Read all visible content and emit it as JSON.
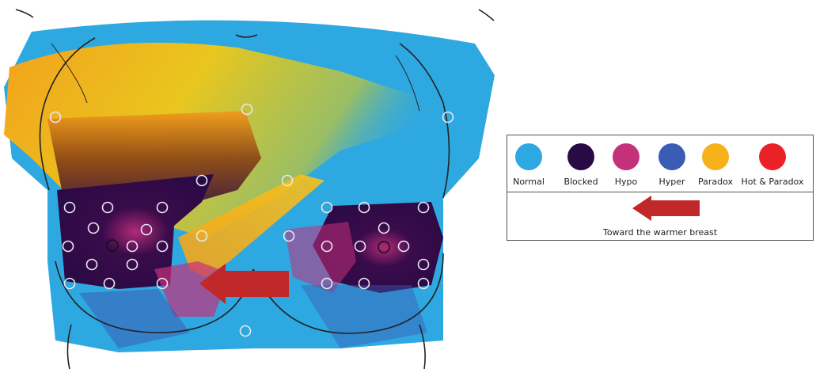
{
  "legend": {
    "items": [
      {
        "label": "Normal",
        "color": "#2ea8e0"
      },
      {
        "label": "Blocked",
        "color": "#2a0a45"
      },
      {
        "label": "Hypo",
        "color": "#c4307a"
      },
      {
        "label": "Hyper",
        "color": "#3a5cb4"
      },
      {
        "label": "Paradox",
        "color": "#f7b21a"
      },
      {
        "label": "Hot & Paradox",
        "color": "#ea2227"
      }
    ],
    "arrow_caption": "Toward the warmer breast",
    "arrow_color": "#c0282a"
  },
  "colors": {
    "normal": "#2ea8e0",
    "paradox": "#f7b21a",
    "orange": "#f39b1a",
    "brown": "#7a3a16",
    "blocked": "#2a0a45",
    "hypo": "#c4307a",
    "hyper": "#3a5cb4",
    "marker": "#e8e8f0",
    "outline": "#222222"
  }
}
